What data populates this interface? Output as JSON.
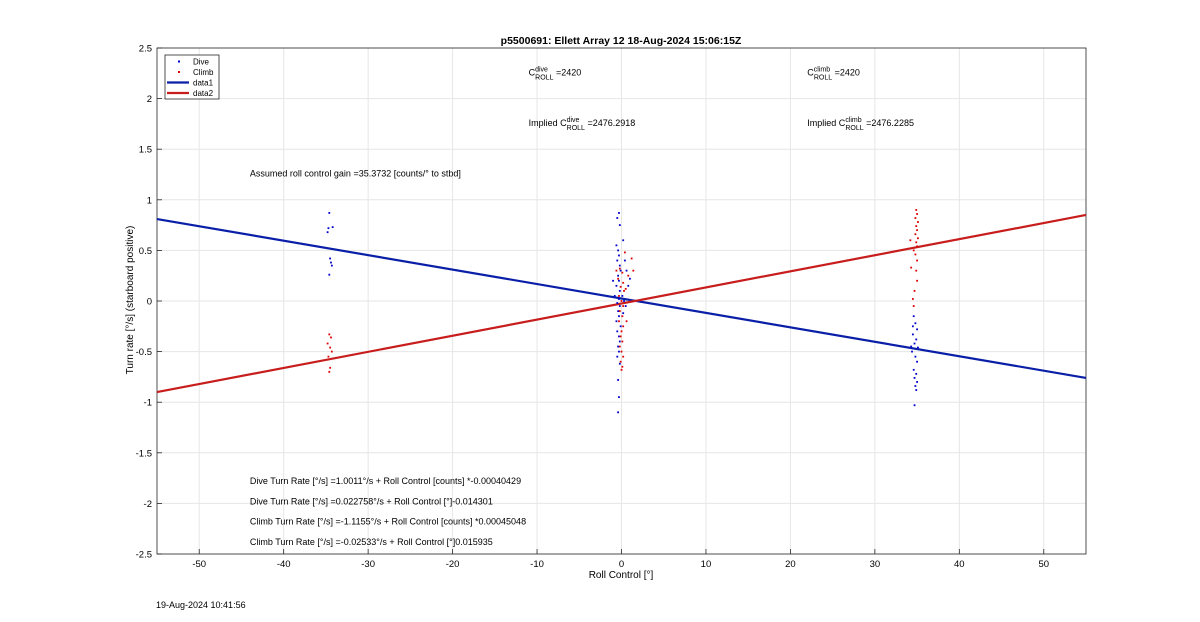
{
  "chart_data": {
    "type": "scatter",
    "title": "p5500691: Ellett Array 12 18-Aug-2024 15:06:15Z",
    "xlabel": "Roll Control [°]",
    "ylabel": "Turn rate [°/s] (starboard positive)",
    "xlim": [
      -55,
      55
    ],
    "ylim": [
      -2.5,
      2.5
    ],
    "xticks": [
      -50,
      -40,
      -30,
      -20,
      -10,
      0,
      10,
      20,
      30,
      40,
      50
    ],
    "yticks": [
      -2.5,
      -2,
      -1.5,
      -1,
      -0.5,
      0,
      0.5,
      1,
      1.5,
      2,
      2.5
    ],
    "grid": true,
    "legend_position": "top-left",
    "legend": [
      {
        "label": "Dive",
        "kind": "marker",
        "color": "#0000cc"
      },
      {
        "label": "Climb",
        "kind": "marker",
        "color": "#dd0000"
      },
      {
        "label": "data1",
        "kind": "line",
        "color": "#0a1fa8"
      },
      {
        "label": "data2",
        "kind": "line",
        "color": "#c81d1d"
      }
    ],
    "series": [
      {
        "name": "Dive",
        "color": "#0000cc",
        "points": [
          [
            -34.6,
            0.87
          ],
          [
            -34.7,
            0.72
          ],
          [
            -34.8,
            0.68
          ],
          [
            -34.2,
            0.73
          ],
          [
            -34.5,
            0.42
          ],
          [
            -34.4,
            0.38
          ],
          [
            -34.6,
            0.26
          ],
          [
            -34.3,
            0.35
          ],
          [
            -0.3,
            0.87
          ],
          [
            -0.5,
            0.82
          ],
          [
            -0.2,
            0.75
          ],
          [
            -0.6,
            0.55
          ],
          [
            -0.4,
            0.5
          ],
          [
            -0.3,
            0.45
          ],
          [
            -0.5,
            0.4
          ],
          [
            -0.2,
            0.35
          ],
          [
            -0.1,
            0.3
          ],
          [
            -0.4,
            0.25
          ],
          [
            -0.3,
            0.2
          ],
          [
            -0.6,
            0.15
          ],
          [
            -0.2,
            0.1
          ],
          [
            0.1,
            0.05
          ],
          [
            -0.3,
            0.02
          ],
          [
            -0.5,
            -0.02
          ],
          [
            -0.2,
            -0.05
          ],
          [
            -0.4,
            -0.1
          ],
          [
            0.2,
            -0.12
          ],
          [
            -0.3,
            -0.15
          ],
          [
            -0.6,
            -0.2
          ],
          [
            -0.1,
            -0.25
          ],
          [
            -0.5,
            -0.3
          ],
          [
            -0.3,
            -0.35
          ],
          [
            -0.2,
            -0.4
          ],
          [
            -0.4,
            -0.45
          ],
          [
            -0.3,
            -0.5
          ],
          [
            -0.5,
            -0.55
          ],
          [
            -0.2,
            -0.62
          ],
          [
            -0.4,
            -0.78
          ],
          [
            -0.3,
            -0.95
          ],
          [
            -0.4,
            -1.1
          ],
          [
            0.6,
            0.3
          ],
          [
            0.8,
            0.15
          ],
          [
            0.3,
            0.0
          ],
          [
            0.5,
            -0.05
          ],
          [
            1.0,
            0.22
          ],
          [
            -0.8,
            0.05
          ],
          [
            -1.0,
            0.2
          ],
          [
            0.4,
            0.4
          ],
          [
            0.2,
            0.6
          ],
          [
            34.6,
            -0.15
          ],
          [
            34.8,
            -0.22
          ],
          [
            35.0,
            -0.28
          ],
          [
            34.5,
            -0.33
          ],
          [
            34.9,
            -0.38
          ],
          [
            34.7,
            -0.42
          ],
          [
            35.1,
            -0.46
          ],
          [
            34.4,
            -0.5
          ],
          [
            34.8,
            -0.55
          ],
          [
            35.0,
            -0.6
          ],
          [
            34.6,
            -0.68
          ],
          [
            34.9,
            -0.72
          ],
          [
            34.7,
            -0.76
          ],
          [
            35.0,
            -0.8
          ],
          [
            34.8,
            -0.84
          ],
          [
            34.9,
            -0.88
          ],
          [
            34.7,
            -1.03
          ],
          [
            34.3,
            -0.45
          ],
          [
            34.5,
            -0.25
          ]
        ]
      },
      {
        "name": "Climb",
        "color": "#dd0000",
        "points": [
          [
            -34.6,
            -0.33
          ],
          [
            -34.4,
            -0.36
          ],
          [
            -34.8,
            -0.42
          ],
          [
            -34.5,
            -0.46
          ],
          [
            -34.3,
            -0.5
          ],
          [
            -34.7,
            -0.55
          ],
          [
            -34.5,
            -0.66
          ],
          [
            -34.6,
            -0.7
          ],
          [
            -0.2,
            0.32
          ],
          [
            0.1,
            0.28
          ],
          [
            -0.4,
            0.22
          ],
          [
            0.2,
            0.18
          ],
          [
            -0.1,
            0.14
          ],
          [
            0.3,
            0.1
          ],
          [
            -0.3,
            0.05
          ],
          [
            0.0,
            0.0
          ],
          [
            0.2,
            -0.05
          ],
          [
            -0.2,
            -0.1
          ],
          [
            0.1,
            -0.15
          ],
          [
            -0.3,
            -0.2
          ],
          [
            0.2,
            -0.25
          ],
          [
            0.0,
            -0.3
          ],
          [
            -0.1,
            -0.35
          ],
          [
            0.1,
            -0.4
          ],
          [
            -0.2,
            -0.45
          ],
          [
            0.0,
            -0.5
          ],
          [
            0.2,
            -0.55
          ],
          [
            -0.1,
            -0.6
          ],
          [
            0.1,
            -0.65
          ],
          [
            0.0,
            -0.68
          ],
          [
            1.2,
            0.42
          ],
          [
            1.4,
            0.3
          ],
          [
            0.8,
            0.25
          ],
          [
            0.5,
            0.12
          ],
          [
            -0.6,
            0.3
          ],
          [
            0.6,
            -0.2
          ],
          [
            0.4,
            0.48
          ],
          [
            34.9,
            0.9
          ],
          [
            35.0,
            0.86
          ],
          [
            34.8,
            0.82
          ],
          [
            35.1,
            0.78
          ],
          [
            34.9,
            0.74
          ],
          [
            35.0,
            0.7
          ],
          [
            34.8,
            0.66
          ],
          [
            35.1,
            0.62
          ],
          [
            34.9,
            0.58
          ],
          [
            35.0,
            0.54
          ],
          [
            34.6,
            0.5
          ],
          [
            34.8,
            0.46
          ],
          [
            35.0,
            0.4
          ],
          [
            34.9,
            0.3
          ],
          [
            35.0,
            0.2
          ],
          [
            34.7,
            0.1
          ],
          [
            34.5,
            0.02
          ],
          [
            34.6,
            -0.05
          ],
          [
            34.3,
            0.33
          ],
          [
            34.2,
            0.6
          ]
        ]
      },
      {
        "name": "data1",
        "type": "line",
        "color": "#0a1fa8",
        "x": [
          -55,
          55
        ],
        "y": [
          0.81,
          -0.76
        ]
      },
      {
        "name": "data2",
        "type": "line",
        "color": "#c81d1d",
        "x": [
          -55,
          55
        ],
        "y": [
          -0.9,
          0.85
        ]
      }
    ],
    "annotations": [
      {
        "id": "c-dive",
        "base": "C",
        "sup": "dive",
        "sub": "ROLL",
        "rest": " =2420",
        "x": -11,
        "y": 2.23
      },
      {
        "id": "c-climb",
        "base": "C",
        "sup": "climb",
        "sub": "ROLL",
        "rest": " =2420",
        "x": 22,
        "y": 2.23
      },
      {
        "id": "implied-dive",
        "base": "Implied C",
        "sup": "dive",
        "sub": "ROLL",
        "rest": " =2476.2918",
        "x": -11,
        "y": 1.73
      },
      {
        "id": "implied-climb",
        "base": "Implied C",
        "sup": "climb",
        "sub": "ROLL",
        "rest": " =2476.2285",
        "x": 22,
        "y": 1.73
      },
      {
        "id": "gain",
        "text": "Assumed roll control gain =35.3732 [counts/° to stbd]",
        "x": -44,
        "y": 1.23
      },
      {
        "id": "dive-counts",
        "text": "Dive Turn Rate [°/s] =1.0011°/s + Roll Control [counts] *-0.00040429",
        "x": -44,
        "y": -1.81
      },
      {
        "id": "dive-deg",
        "text": "Dive Turn Rate [°/s] =0.022758°/s + Roll Control [°]-0.014301",
        "x": -44,
        "y": -2.01
      },
      {
        "id": "climb-counts",
        "text": "Climb Turn Rate [°/s] =-1.1155°/s + Roll Control [counts] *0.00045048",
        "x": -44,
        "y": -2.21
      },
      {
        "id": "climb-deg",
        "text": "Climb Turn Rate [°/s] =-0.02533°/s + Roll Control [°]0.015935",
        "x": -44,
        "y": -2.41
      }
    ]
  },
  "footer": {
    "timestamp": "19-Aug-2024 10:41:56"
  }
}
